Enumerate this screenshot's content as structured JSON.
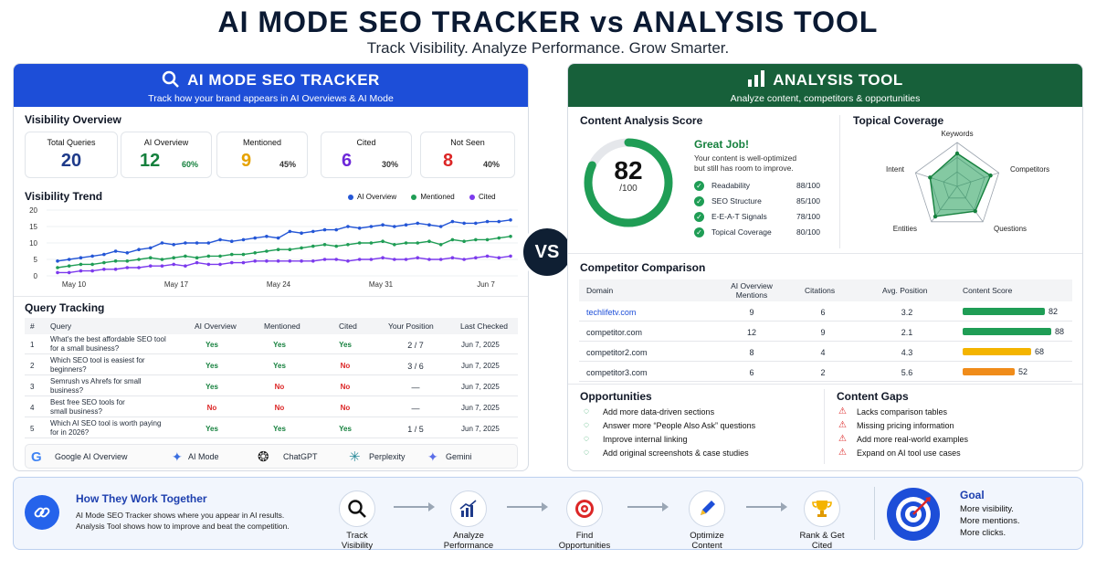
{
  "header": {
    "title": "AI MODE SEO TRACKER vs ANALYSIS TOOL",
    "subtitle": "Track Visibility. Analyze Performance. Grow Smarter."
  },
  "vs": "VS",
  "left": {
    "title": "AI MODE SEO TRACKER",
    "subtitle": "Track how your brand appears in AI Overviews & AI Mode",
    "visibility_overview": "Visibility Overview",
    "cards": [
      {
        "label": "Total Queries",
        "value": "20",
        "pct": ""
      },
      {
        "label": "AI Overview",
        "value": "12",
        "pct": "60%"
      },
      {
        "label": "Mentioned",
        "value": "9",
        "pct": "45%"
      },
      {
        "label": "Cited",
        "value": "6",
        "pct": "30%"
      },
      {
        "label": "Not Seen",
        "value": "8",
        "pct": "40%"
      }
    ],
    "trend_title": "Visibility Trend",
    "query_title": "Query Tracking",
    "table_headers": [
      "#",
      "Query",
      "AI Overview",
      "Mentioned",
      "Cited",
      "Your Position",
      "Last Checked"
    ],
    "rows": [
      {
        "n": "1",
        "q1": "What's the best affordable SEO tool",
        "q2": "for a small business?",
        "ai": "Yes",
        "men": "Yes",
        "cit": "Yes",
        "pos": "2 / 7",
        "date": "Jun 7, 2025"
      },
      {
        "n": "2",
        "q1": "Which SEO tool is easiest for",
        "q2": "beginners?",
        "ai": "Yes",
        "men": "Yes",
        "cit": "No",
        "pos": "3 / 6",
        "date": "Jun 7, 2025"
      },
      {
        "n": "3",
        "q1": "Semrush vs Ahrefs for small",
        "q2": "business?",
        "ai": "Yes",
        "men": "No",
        "cit": "No",
        "pos": "—",
        "date": "Jun 7, 2025"
      },
      {
        "n": "4",
        "q1": "Best free SEO tools for",
        "q2": "small business?",
        "ai": "No",
        "men": "No",
        "cit": "No",
        "pos": "—",
        "date": "Jun 7, 2025"
      },
      {
        "n": "5",
        "q1": "Which AI SEO tool is worth paying",
        "q2": "for in 2026?",
        "ai": "Yes",
        "men": "Yes",
        "cit": "Yes",
        "pos": "1 / 5",
        "date": "Jun 7, 2025"
      }
    ],
    "platforms": [
      "Google AI Overview",
      "AI Mode",
      "ChatGPT",
      "Perplexity",
      "Gemini"
    ]
  },
  "chart_data": {
    "type": "line",
    "title": "Visibility Trend",
    "x_ticks": [
      "May 10",
      "May 17",
      "May 24",
      "May 31",
      "Jun 7"
    ],
    "ylim": [
      0,
      20
    ],
    "y_ticks": [
      0,
      5,
      10,
      15,
      20
    ],
    "series": [
      {
        "name": "AI Overview",
        "color": "#2456d6",
        "values": [
          4.5,
          5,
          5.5,
          6,
          6.5,
          7.5,
          7,
          8,
          8.5,
          10,
          9.5,
          10,
          10,
          10,
          11,
          10.5,
          11,
          11.5,
          12,
          11.5,
          13.5,
          13,
          13.5,
          14,
          14,
          15,
          14.5,
          15,
          15.5,
          15,
          15.5,
          16,
          15.5,
          15,
          16.5,
          16,
          16,
          16.5,
          16.5,
          17
        ]
      },
      {
        "name": "Mentioned",
        "color": "#1f9d55",
        "values": [
          2.5,
          3,
          3.5,
          3.5,
          4,
          4.5,
          4.5,
          5,
          5.5,
          5,
          5.5,
          6,
          5.5,
          6,
          6,
          6.5,
          6.5,
          7,
          7.5,
          8,
          8,
          8.5,
          9,
          9.5,
          9,
          9.5,
          10,
          10,
          10.5,
          9.5,
          10,
          10,
          10.5,
          9.5,
          11,
          10.5,
          11,
          11,
          11.5,
          12
        ]
      },
      {
        "name": "Cited",
        "color": "#7c3aed",
        "values": [
          1,
          1,
          1.5,
          1.5,
          2,
          2,
          2.5,
          2.5,
          3,
          3,
          3.5,
          3,
          4,
          3.5,
          3.5,
          4,
          4,
          4.5,
          4.5,
          4.5,
          4.5,
          4.5,
          4.5,
          5,
          5,
          4.5,
          5,
          5,
          5.5,
          5,
          5,
          5.5,
          5,
          5,
          5.5,
          5,
          5.5,
          6,
          5.5,
          6
        ]
      }
    ]
  },
  "right": {
    "title": "ANALYSIS TOOL",
    "subtitle": "Analyze content, competitors & opportunities",
    "score_title": "Content Analysis Score",
    "score": "82",
    "score_fraction": 0.82,
    "score_den": "/100",
    "great": "Great Job!",
    "great_desc1": "Your content is well-optimized",
    "great_desc2": "but still has room to improve.",
    "metrics": [
      {
        "label": "Readability",
        "value": "88/100"
      },
      {
        "label": "SEO Structure",
        "value": "85/100"
      },
      {
        "label": "E-E-A-T Signals",
        "value": "78/100"
      },
      {
        "label": "Topical Coverage",
        "value": "80/100"
      }
    ],
    "coverage_title": "Topical Coverage",
    "radar_axes": [
      "Keywords",
      "Competitors",
      "Questions",
      "Entities",
      "Intent"
    ],
    "radar_values": [
      0.75,
      0.8,
      0.7,
      0.85,
      0.65
    ],
    "comp_title": "Competitor Comparison",
    "comp_headers": [
      "Domain",
      "AI Overview",
      "Mentions",
      "Citations",
      "Avg. Position",
      "Content Score"
    ],
    "comp_rows": [
      {
        "domain": "techlifetv.com",
        "men": "9",
        "cit": "6",
        "pos": "3.2",
        "score": "82",
        "fill": 0.82,
        "color": "#1f9d55"
      },
      {
        "domain": "competitor.com",
        "men": "12",
        "cit": "9",
        "pos": "2.1",
        "score": "88",
        "fill": 0.88,
        "color": "#1f9d55"
      },
      {
        "domain": "competitor2.com",
        "men": "8",
        "cit": "4",
        "pos": "4.3",
        "score": "68",
        "fill": 0.68,
        "color": "#f4b400"
      },
      {
        "domain": "competitor3.com",
        "men": "6",
        "cit": "2",
        "pos": "5.6",
        "score": "52",
        "fill": 0.52,
        "color": "#f08c1a"
      }
    ],
    "opp_title": "Opportunities",
    "opportunities": [
      "Add more data-driven sections",
      "Answer more “People Also Ask” questions",
      "Improve internal linking",
      "Add original screenshots & case studies"
    ],
    "gaps_title": "Content Gaps",
    "gaps": [
      "Lacks comparison tables",
      "Missing pricing information",
      "Add more real-world examples",
      "Expand on AI tool use cases"
    ]
  },
  "bottom": {
    "title": "How They Work Together",
    "desc1": "AI Mode SEO Tracker shows where you appear in AI results.",
    "desc2": "Analysis Tool shows how to improve and beat the competition.",
    "steps": [
      {
        "l1": "Track",
        "l2": "Visibility"
      },
      {
        "l1": "Analyze",
        "l2": "Performance"
      },
      {
        "l1": "Find",
        "l2": "Opportunities"
      },
      {
        "l1": "Optimize",
        "l2": "Content"
      },
      {
        "l1": "Rank & Get",
        "l2": "Cited"
      }
    ],
    "goal_title": "Goal",
    "goal": [
      "More visibility.",
      "More mentions.",
      "More clicks."
    ]
  }
}
